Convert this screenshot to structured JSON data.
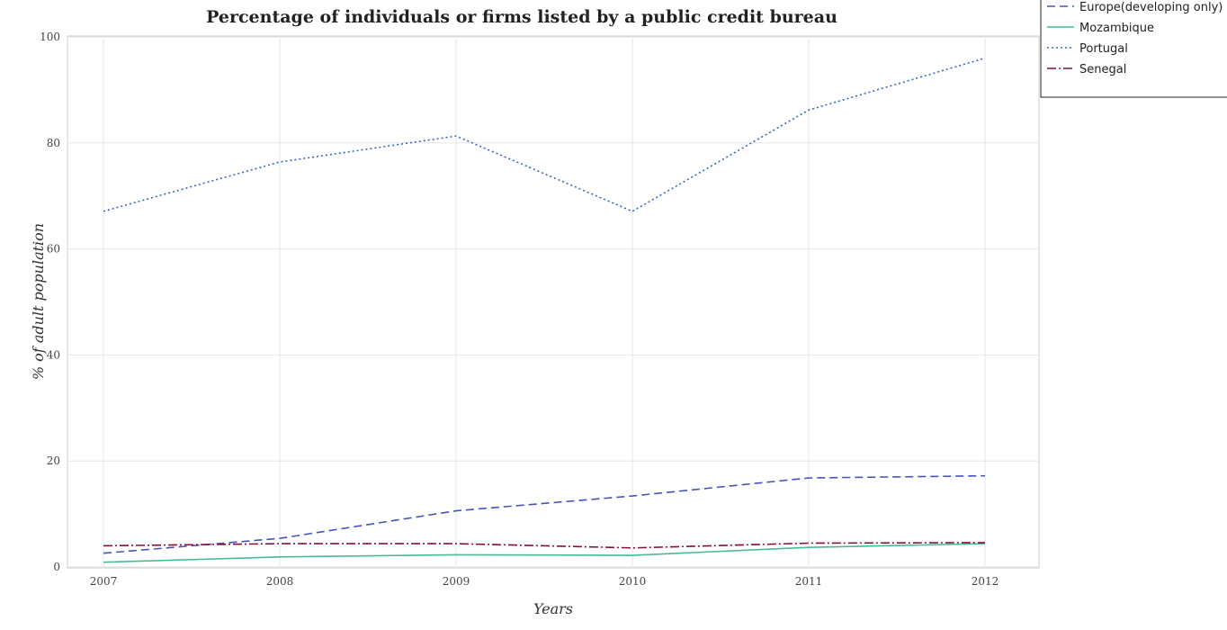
{
  "chart_data": {
    "type": "line",
    "title": "Percentage of individuals or firms listed by a public credit bureau",
    "xlabel": "Years",
    "ylabel": "% of adult population",
    "categories": [
      "2007",
      "2008",
      "2009",
      "2010",
      "2011",
      "2012"
    ],
    "ylim": [
      0,
      100
    ],
    "yticks": [
      0,
      20,
      40,
      60,
      80,
      100
    ],
    "grid": true,
    "legend_position": "top-right",
    "series": [
      {
        "name": "Europe(developing only)",
        "color": "#4455bb",
        "dash": "dashed",
        "values": [
          2.6,
          5.4,
          10.6,
          13.4,
          16.8,
          17.2
        ]
      },
      {
        "name": "Mozambique",
        "color": "#44bb99",
        "dash": "solid",
        "values": [
          0.9,
          1.9,
          2.3,
          2.2,
          3.7,
          4.4
        ]
      },
      {
        "name": "Portugal",
        "color": "#3366cc",
        "dash": "dotted",
        "values": [
          67.1,
          76.4,
          81.3,
          67.1,
          86.2,
          96.0
        ]
      },
      {
        "name": "Senegal",
        "color": "#881133",
        "dash": "dashdot",
        "values": [
          4.0,
          4.4,
          4.4,
          3.6,
          4.5,
          4.6
        ]
      }
    ]
  }
}
